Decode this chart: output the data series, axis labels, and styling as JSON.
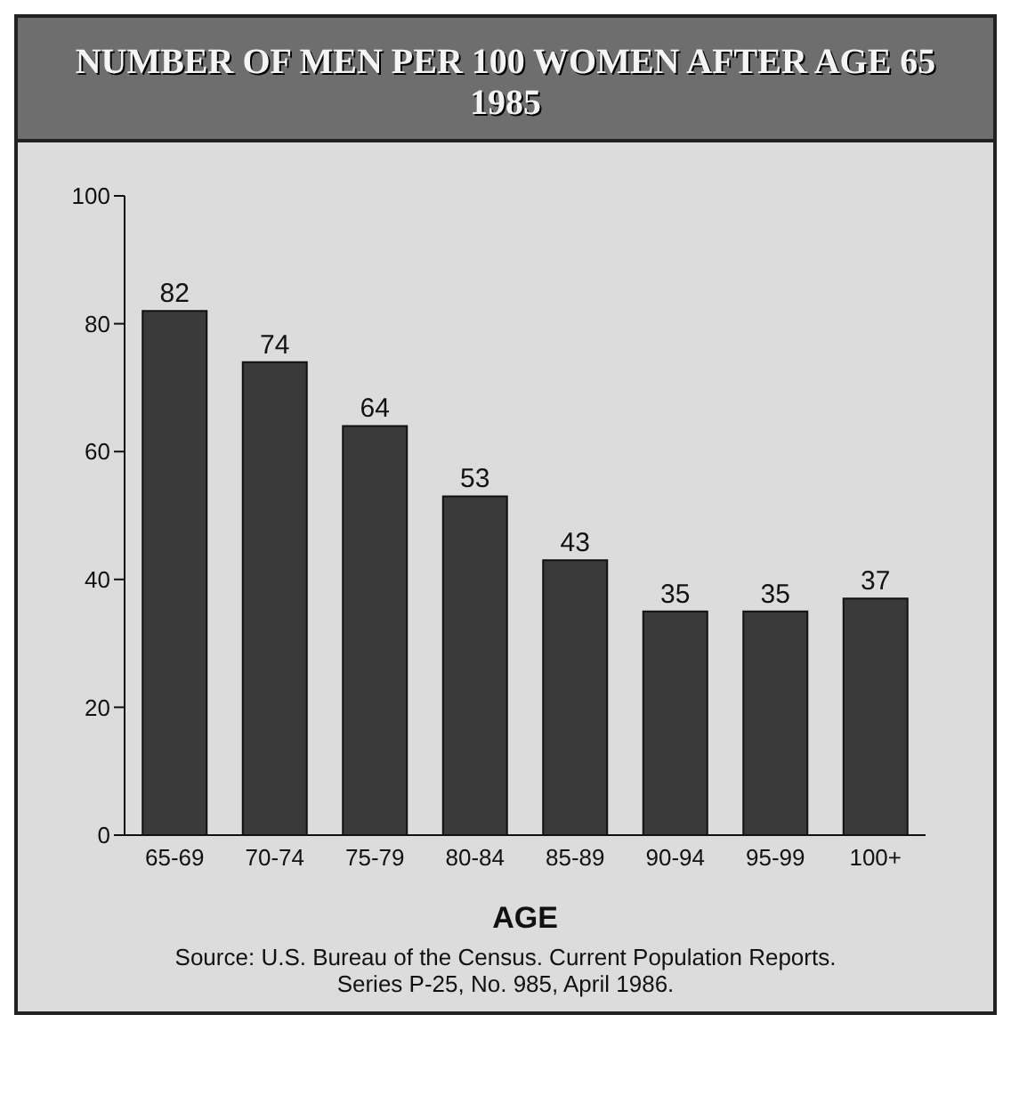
{
  "chart_data": {
    "type": "bar",
    "title": "NUMBER OF MEN PER 100 WOMEN AFTER AGE 65",
    "subtitle": "1985",
    "xlabel": "AGE",
    "categories": [
      "65-69",
      "70-74",
      "75-79",
      "80-84",
      "85-89",
      "90-94",
      "95-99",
      "100+"
    ],
    "values": [
      82,
      74,
      64,
      53,
      43,
      35,
      35,
      37
    ],
    "color": "#3a3a3a",
    "ylim": [
      0,
      100
    ],
    "yticks": [
      0,
      20,
      40,
      60,
      80,
      100
    ],
    "grid": false,
    "data_labels": true,
    "annotations": [
      "Source: U.S. Bureau of the Census. Current Population Reports.",
      "Series P-25, No. 985, April 1986."
    ]
  }
}
